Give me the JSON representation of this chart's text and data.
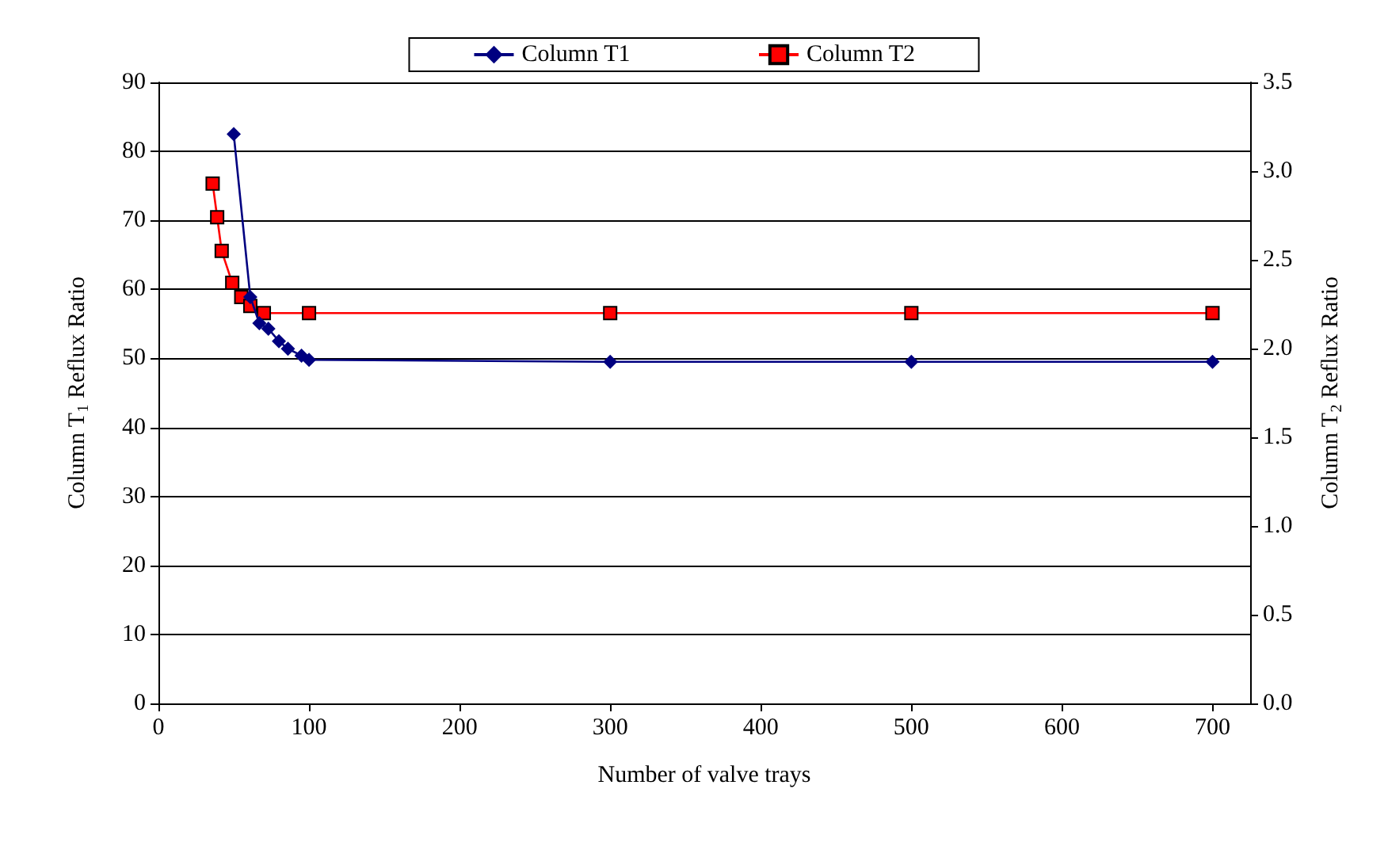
{
  "chart_data": {
    "type": "line",
    "xlabel": "Number of valve trays",
    "ylabel": "Column T$_{1}$ Reflux Ratio",
    "y2label": "Column T$_{2}$ Reflux Ratio",
    "xlim": [
      0,
      725
    ],
    "xticks": [
      0,
      100,
      200,
      300,
      400,
      500,
      600,
      700
    ],
    "ylim": [
      0,
      90
    ],
    "yticks": [
      0,
      10,
      20,
      30,
      40,
      50,
      60,
      70,
      80,
      90
    ],
    "y2lim": [
      0,
      3.5
    ],
    "y2ticks": [
      {
        "value": 0,
        "label": "0.0"
      },
      {
        "value": 0.5,
        "label": "0.5"
      },
      {
        "value": 1,
        "label": "1.0"
      },
      {
        "value": 1.5,
        "label": "1.5"
      },
      {
        "value": 2,
        "label": "2.0"
      },
      {
        "value": 2.5,
        "label": "2.5"
      },
      {
        "value": 3,
        "label": "3.0"
      },
      {
        "value": 3.5,
        "label": "3.5"
      }
    ],
    "grid": "y",
    "legend": "top",
    "line_style": "solid",
    "series": [
      {
        "name": "Column T1",
        "color": "#000080",
        "marker": "diamond",
        "x": [
          50,
          61,
          67,
          73,
          80,
          86,
          95,
          100,
          300,
          500,
          700
        ],
        "values": [
          82.5,
          58.9,
          55.1,
          54.3,
          52.5,
          51.4,
          50.4,
          49.8,
          49.5,
          49.5,
          49.5
        ]
      },
      {
        "name": "Column T2",
        "color": "#ff0000",
        "marker": "square",
        "axis": "y2",
        "x": [
          36,
          39,
          42,
          49,
          55,
          61,
          70,
          100,
          300,
          500,
          700
        ],
        "values": [
          2.93,
          2.74,
          2.55,
          2.37,
          2.29,
          2.24,
          2.2,
          2.2,
          2.2,
          2.2,
          2.2
        ]
      }
    ]
  }
}
